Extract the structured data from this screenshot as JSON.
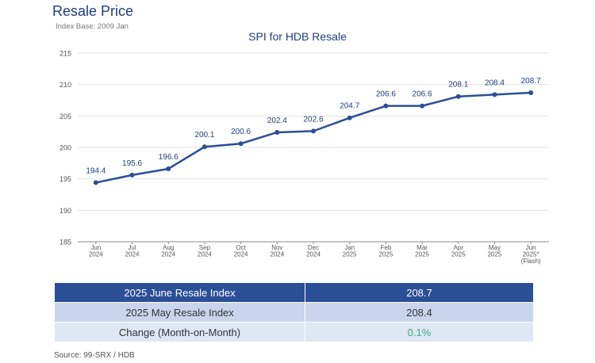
{
  "page": {
    "title": "Resale Price",
    "subtitle": "Index Base: 2009 Jan",
    "source": "Source: 99-SRX / HDB"
  },
  "chart_data": {
    "type": "line",
    "title": "SPI for HDB Resale",
    "categories": [
      [
        "Jun",
        "2024"
      ],
      [
        "Jul",
        "2024"
      ],
      [
        "Aug",
        "2024"
      ],
      [
        "Sep",
        "2024"
      ],
      [
        "Oct",
        "2024"
      ],
      [
        "Nov",
        "2024"
      ],
      [
        "Dec",
        "2024"
      ],
      [
        "Jan",
        "2025"
      ],
      [
        "Feb",
        "2025"
      ],
      [
        "Mar",
        "2025"
      ],
      [
        "Apr",
        "2025"
      ],
      [
        "May",
        "2025"
      ],
      [
        "Jun",
        "2025*",
        "(Flash)"
      ]
    ],
    "values": [
      194.4,
      195.6,
      196.6,
      200.1,
      200.6,
      202.4,
      202.6,
      204.7,
      206.6,
      206.6,
      208.1,
      208.4,
      208.7
    ],
    "data_labels": [
      "194.4",
      "195.6",
      "196.6",
      "200.1",
      "200.6",
      "202.4",
      "202.6",
      "204.7",
      "206.6",
      "206.6",
      "208.1",
      "208.4",
      "208.7"
    ],
    "ylim": [
      185,
      215
    ],
    "yticks": [
      185,
      190,
      195,
      200,
      205,
      210,
      215
    ],
    "grid": true,
    "color": "#2b4f97"
  },
  "table": {
    "rows": [
      {
        "label": "2025 June Resale Index",
        "value": "208.7"
      },
      {
        "label": "2025 May Resale Index",
        "value": "208.4"
      },
      {
        "label": "Change (Month-on-Month)",
        "value": "0.1%"
      }
    ],
    "colors": {
      "header": "#2b4f97",
      "positive": "#35b27a"
    }
  }
}
